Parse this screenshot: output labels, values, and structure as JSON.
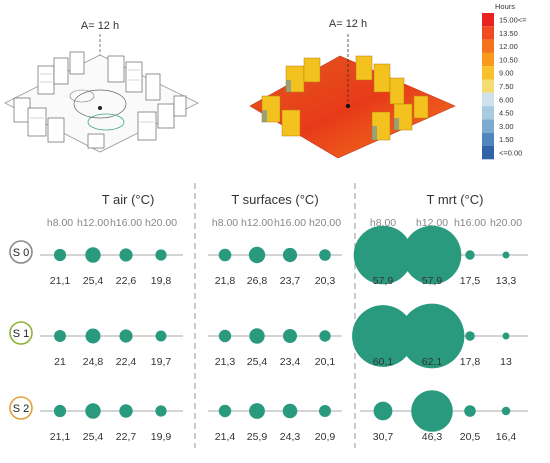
{
  "figure": {
    "renders": [
      {
        "annotation": "A= 12 h",
        "style": "line-drawing"
      },
      {
        "annotation": "A= 12 h",
        "style": "heatmap"
      }
    ],
    "legend": {
      "title": "Hours",
      "labels": [
        "15.00<=",
        "13.50",
        "12.00",
        "10.50",
        "9.00",
        "7.50",
        "6.00",
        "4.50",
        "3.00",
        "1.50",
        "<=0.00"
      ],
      "colors": [
        "#e8231f",
        "#f04a22",
        "#f5721f",
        "#f99a1d",
        "#f8c12c",
        "#f3dd72",
        "#cfe2ec",
        "#a9cbe1",
        "#7daad0",
        "#4f87bd",
        "#2f63a6"
      ]
    },
    "accent_color": "#2a9a7e",
    "groups": [
      {
        "title": "T air (°C)",
        "hours": [
          "h8.00",
          "h12.00",
          "h16.00",
          "h20.00"
        ]
      },
      {
        "title": "T surfaces (°C)",
        "hours": [
          "h8.00",
          "h12.00",
          "h16.00",
          "h20.00"
        ]
      },
      {
        "title": "T mrt (°C)",
        "hours": [
          "h8.00",
          "h12.00",
          "h16.00",
          "h20.00"
        ]
      }
    ],
    "scenarios": [
      {
        "label": "S 0",
        "ring_color": "#888888",
        "values": [
          [
            "21,1",
            "25,4",
            "22,6",
            "19,8"
          ],
          [
            "21,8",
            "26,8",
            "23,7",
            "20,3"
          ],
          [
            "57,9",
            "57,9",
            "17,5",
            "13,3"
          ]
        ],
        "numeric": [
          [
            21.1,
            25.4,
            22.6,
            19.8
          ],
          [
            21.8,
            26.8,
            23.7,
            20.3
          ],
          [
            57.9,
            57.9,
            17.5,
            13.3
          ]
        ]
      },
      {
        "label": "S 1",
        "ring_color": "#8db33a",
        "values": [
          [
            "21",
            "24,8",
            "22,4",
            "19,7"
          ],
          [
            "21,3",
            "25,4",
            "23,4",
            "20,1"
          ],
          [
            "60,1",
            "62,1",
            "17,8",
            "13"
          ]
        ],
        "numeric": [
          [
            21.0,
            24.8,
            22.4,
            19.7
          ],
          [
            21.3,
            25.4,
            23.4,
            20.1
          ],
          [
            60.1,
            62.1,
            17.8,
            13.0
          ]
        ]
      },
      {
        "label": "S 2",
        "ring_color": "#e2a13a",
        "values": [
          [
            "21,1",
            "25,4",
            "22,7",
            "19,9"
          ],
          [
            "21,4",
            "25,9",
            "24,3",
            "20,9"
          ],
          [
            "30,7",
            "46,3",
            "20,5",
            "16,4"
          ]
        ],
        "numeric": [
          [
            21.1,
            25.4,
            22.7,
            19.9
          ],
          [
            21.4,
            25.9,
            24.3,
            20.9
          ],
          [
            30.7,
            46.3,
            20.5,
            16.4
          ]
        ]
      }
    ]
  }
}
